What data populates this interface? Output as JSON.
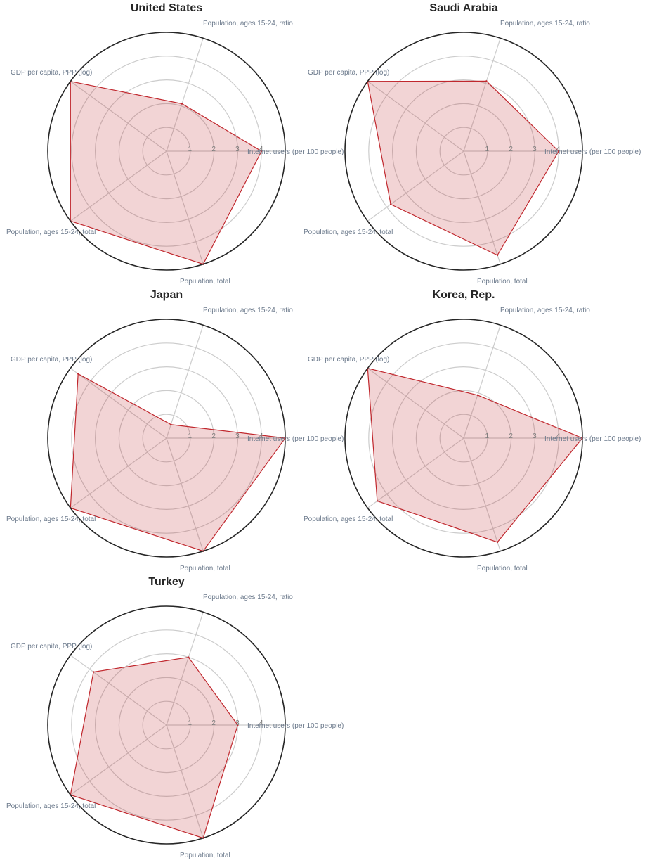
{
  "chart_data": {
    "type": "radar",
    "axes": [
      "Internet users (per 100 people)",
      "Population, ages 15-24, ratio",
      "GDP per capita, PPP (log)",
      "Population, ages 15-24, total",
      "Population, total"
    ],
    "rlim": [
      0,
      5
    ],
    "rticks": [
      "1",
      "2",
      "3",
      "4"
    ],
    "grid": true,
    "colors": {
      "line": "#c0272d",
      "fill": "#c0272d",
      "frame": "#262626",
      "grid": "#cccccc"
    },
    "panels": [
      {
        "title": "United States",
        "values": [
          4.0,
          2.1,
          5.0,
          5.0,
          5.0
        ]
      },
      {
        "title": "Saudi Arabia",
        "values": [
          4.0,
          3.1,
          5.0,
          3.8,
          4.6
        ]
      },
      {
        "title": "Japan",
        "values": [
          5.0,
          0.6,
          4.6,
          5.0,
          5.0
        ]
      },
      {
        "title": "Korea, Rep.",
        "values": [
          5.0,
          1.9,
          5.0,
          4.5,
          4.6
        ]
      },
      {
        "title": "Turkey",
        "values": [
          3.0,
          3.0,
          3.8,
          5.0,
          5.0
        ]
      }
    ]
  }
}
